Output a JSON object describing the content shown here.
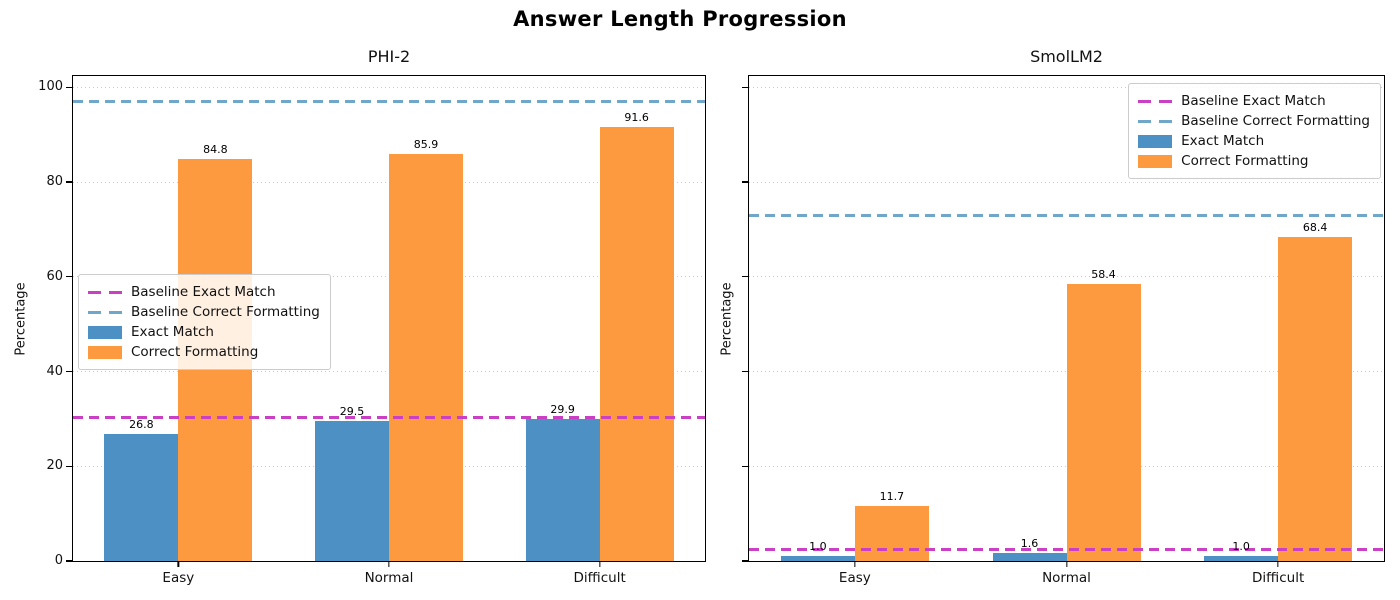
{
  "title": "Answer Length Progression",
  "colors": {
    "exact_match": "#4c90c4",
    "correct_formatting": "#fd9a40",
    "baseline_exact_match": "#cb3fc4",
    "baseline_correct_formatting": "#6fa7cb",
    "grid": "#c9c9c9"
  },
  "legend": {
    "items": [
      {
        "label": "Baseline Exact Match",
        "type": "dash",
        "color_key": "baseline_exact_match"
      },
      {
        "label": "Baseline Correct Formatting",
        "type": "dash",
        "color_key": "baseline_correct_formatting"
      },
      {
        "label": "Exact Match",
        "type": "rect",
        "color_key": "exact_match"
      },
      {
        "label": "Correct Formatting",
        "type": "rect",
        "color_key": "correct_formatting"
      }
    ]
  },
  "chart_data": [
    {
      "type": "bar",
      "title": "PHI-2",
      "categories": [
        "Easy",
        "Normal",
        "Difficult"
      ],
      "series": [
        {
          "name": "Exact Match",
          "values": [
            26.8,
            29.5,
            29.9
          ]
        },
        {
          "name": "Correct Formatting",
          "values": [
            84.8,
            85.9,
            91.6
          ]
        }
      ],
      "baselines": [
        {
          "name": "Baseline Exact Match",
          "value": 30.2
        },
        {
          "name": "Baseline Correct Formatting",
          "value": 97.0
        }
      ],
      "xlabel": "",
      "ylabel": "Percentage",
      "yticks": [
        0,
        20,
        40,
        60,
        80,
        100
      ],
      "ylim": [
        0,
        102.4
      ],
      "grid": "dotted-horizontal",
      "show_ytick_labels": true,
      "legend_position": "center-left"
    },
    {
      "type": "bar",
      "title": "SmolLM2",
      "categories": [
        "Easy",
        "Normal",
        "Difficult"
      ],
      "series": [
        {
          "name": "Exact Match",
          "values": [
            1.0,
            1.6,
            1.0
          ]
        },
        {
          "name": "Correct Formatting",
          "values": [
            11.7,
            58.4,
            68.4
          ]
        }
      ],
      "baselines": [
        {
          "name": "Baseline Exact Match",
          "value": 2.5
        },
        {
          "name": "Baseline Correct Formatting",
          "value": 72.9
        }
      ],
      "xlabel": "",
      "ylabel": "Percentage",
      "yticks": [
        0,
        20,
        40,
        60,
        80,
        100
      ],
      "ylim": [
        0,
        102.4
      ],
      "grid": "dotted-horizontal",
      "show_ytick_labels": false,
      "legend_position": "top-right"
    }
  ]
}
